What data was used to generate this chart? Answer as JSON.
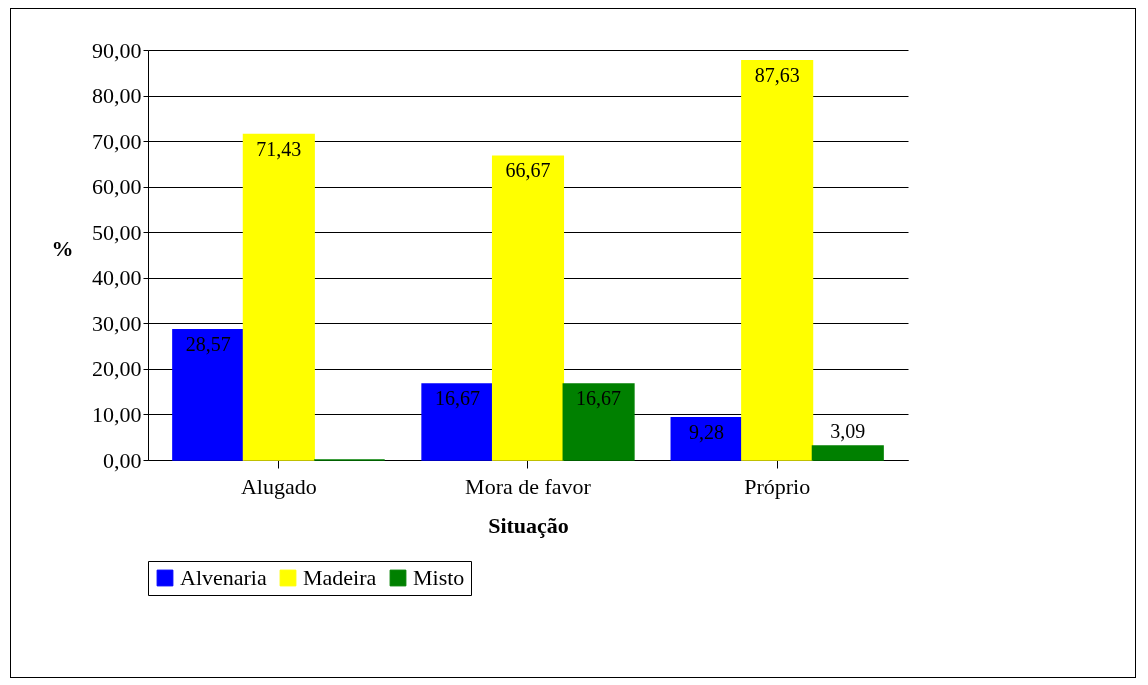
{
  "chart_data": {
    "type": "bar",
    "xlabel": "Situação",
    "ylabel": "%",
    "categories": [
      "Alugado",
      "Mora de favor",
      "Próprio"
    ],
    "series": [
      {
        "name": "Alvenaria",
        "color": "#0000ff",
        "values": [
          28.57,
          16.67,
          9.28
        ],
        "value_labels": [
          "28,57",
          "16,67",
          "9,28"
        ]
      },
      {
        "name": "Madeira",
        "color": "#ffff00",
        "values": [
          71.43,
          66.67,
          87.63
        ],
        "value_labels": [
          "71,43",
          "66,67",
          "87,63"
        ]
      },
      {
        "name": "Misto",
        "color": "#008000",
        "values": [
          0,
          16.67,
          3.09
        ],
        "value_labels": [
          null,
          "16,67",
          "3,09"
        ]
      }
    ],
    "ylim": [
      0,
      90
    ],
    "yticks": [
      {
        "value": 0,
        "label": "0,00"
      },
      {
        "value": 10,
        "label": "10,00"
      },
      {
        "value": 20,
        "label": "20,00"
      },
      {
        "value": 30,
        "label": "30,00"
      },
      {
        "value": 40,
        "label": "40,00"
      },
      {
        "value": 50,
        "label": "50,00"
      },
      {
        "value": 60,
        "label": "60,00"
      },
      {
        "value": 70,
        "label": "70,00"
      },
      {
        "value": 80,
        "label": "80,00"
      },
      {
        "value": 90,
        "label": "90,00"
      }
    ],
    "grid": "y",
    "legend": "bottom"
  }
}
